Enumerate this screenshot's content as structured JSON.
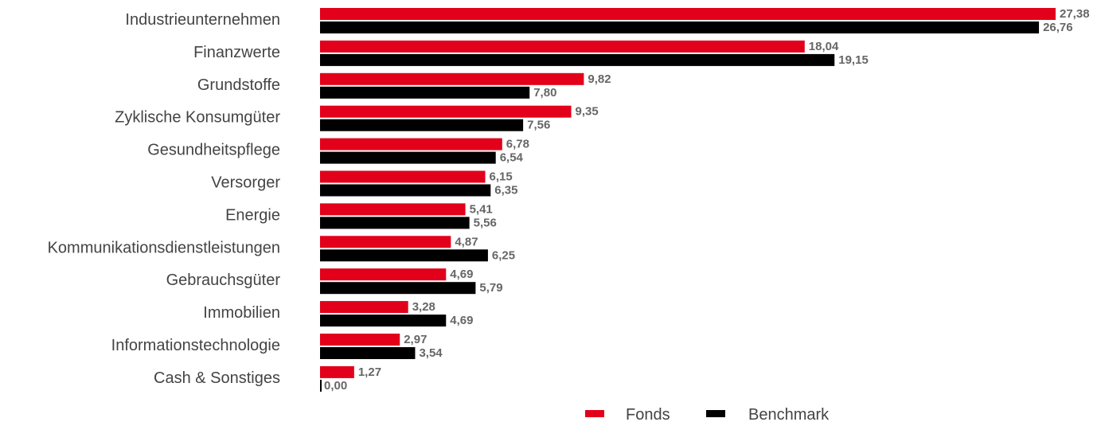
{
  "chart_data": {
    "type": "bar",
    "orientation": "horizontal",
    "categories": [
      "Industrieunternehmen",
      "Finanzwerte",
      "Grundstoffe",
      "Zyklische Konsumgüter",
      "Gesundheitspflege",
      "Versorger",
      "Energie",
      "Kommunikationsdienstleistungen",
      "Gebrauchsgüter",
      "Immobilien",
      "Informationstechnologie",
      "Cash & Sonstiges"
    ],
    "series": [
      {
        "name": "Fonds",
        "color": "#e2001a",
        "values": [
          27.38,
          18.04,
          9.82,
          9.35,
          6.78,
          6.15,
          5.41,
          4.87,
          4.69,
          3.28,
          2.97,
          1.27
        ],
        "labels": [
          "27,38",
          "18,04",
          "9,82",
          "9,35",
          "6,78",
          "6,15",
          "5,41",
          "4,87",
          "4,69",
          "3,28",
          "2,97",
          "1,27"
        ]
      },
      {
        "name": "Benchmark",
        "color": "#000000",
        "values": [
          26.76,
          19.15,
          7.8,
          7.56,
          6.54,
          6.35,
          5.56,
          6.25,
          5.79,
          4.69,
          3.54,
          0.0
        ],
        "labels": [
          "26,76",
          "19,15",
          "7,80",
          "7,56",
          "6,54",
          "6,35",
          "5,56",
          "6,25",
          "5,79",
          "4,69",
          "3,54",
          "0,00"
        ]
      }
    ],
    "legend_position": "bottom-right",
    "grid": false,
    "xlim": [
      0,
      27.38
    ]
  }
}
